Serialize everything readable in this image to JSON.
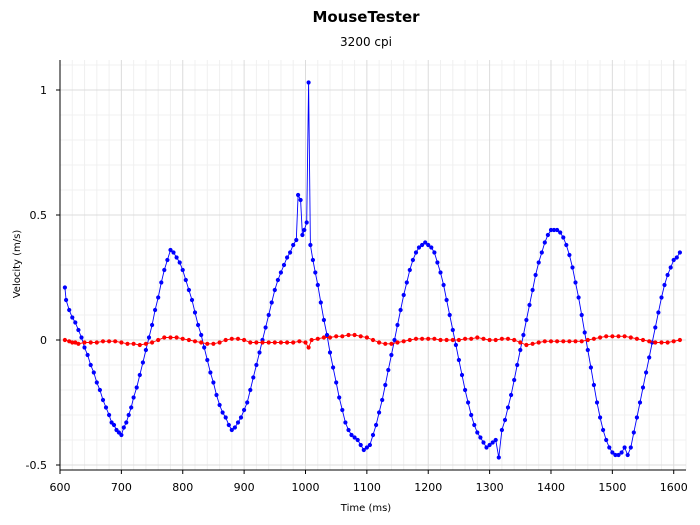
{
  "chart_data": {
    "type": "scatter",
    "title": "MouseTester",
    "subtitle": "3200 cpi",
    "xlabel": "Time (ms)",
    "ylabel": "Velocity (m/s)",
    "xlim": [
      600,
      1620
    ],
    "ylim": [
      -0.52,
      1.12
    ],
    "xticks": [
      600,
      700,
      800,
      900,
      1000,
      1100,
      1200,
      1300,
      1400,
      1500,
      1600
    ],
    "xtick_labels": [
      "600",
      "700",
      "800",
      "900",
      "1000",
      "1100",
      "1200",
      "1300",
      "1400",
      "1500",
      "1600"
    ],
    "yticks": [
      -0.5,
      0,
      0.5,
      1
    ],
    "ytick_labels": [
      "-0.5",
      "0",
      "0.5",
      "1"
    ],
    "grid": true,
    "legend": "none",
    "series": [
      {
        "color": "#0000ff",
        "style": "markers+line",
        "points": [
          [
            608,
            0.21
          ],
          [
            610,
            0.16
          ],
          [
            615,
            0.12
          ],
          [
            620,
            0.09
          ],
          [
            625,
            0.07
          ],
          [
            630,
            0.04
          ],
          [
            635,
            0.01
          ],
          [
            640,
            -0.03
          ],
          [
            645,
            -0.06
          ],
          [
            650,
            -0.1
          ],
          [
            655,
            -0.13
          ],
          [
            660,
            -0.17
          ],
          [
            665,
            -0.2
          ],
          [
            670,
            -0.24
          ],
          [
            675,
            -0.27
          ],
          [
            680,
            -0.3
          ],
          [
            684,
            -0.33
          ],
          [
            688,
            -0.34
          ],
          [
            692,
            -0.36
          ],
          [
            696,
            -0.37
          ],
          [
            700,
            -0.38
          ],
          [
            704,
            -0.35
          ],
          [
            708,
            -0.33
          ],
          [
            712,
            -0.3
          ],
          [
            716,
            -0.27
          ],
          [
            720,
            -0.23
          ],
          [
            725,
            -0.19
          ],
          [
            730,
            -0.14
          ],
          [
            735,
            -0.09
          ],
          [
            740,
            -0.04
          ],
          [
            745,
            0.01
          ],
          [
            750,
            0.06
          ],
          [
            755,
            0.12
          ],
          [
            760,
            0.17
          ],
          [
            765,
            0.23
          ],
          [
            770,
            0.28
          ],
          [
            775,
            0.32
          ],
          [
            780,
            0.36
          ],
          [
            785,
            0.35
          ],
          [
            790,
            0.33
          ],
          [
            795,
            0.31
          ],
          [
            800,
            0.28
          ],
          [
            805,
            0.24
          ],
          [
            810,
            0.2
          ],
          [
            815,
            0.16
          ],
          [
            820,
            0.11
          ],
          [
            825,
            0.06
          ],
          [
            830,
            0.02
          ],
          [
            835,
            -0.03
          ],
          [
            840,
            -0.08
          ],
          [
            845,
            -0.13
          ],
          [
            850,
            -0.17
          ],
          [
            855,
            -0.22
          ],
          [
            860,
            -0.26
          ],
          [
            865,
            -0.29
          ],
          [
            870,
            -0.31
          ],
          [
            875,
            -0.34
          ],
          [
            880,
            -0.36
          ],
          [
            885,
            -0.35
          ],
          [
            890,
            -0.33
          ],
          [
            895,
            -0.31
          ],
          [
            900,
            -0.28
          ],
          [
            905,
            -0.25
          ],
          [
            910,
            -0.2
          ],
          [
            915,
            -0.15
          ],
          [
            920,
            -0.1
          ],
          [
            925,
            -0.05
          ],
          [
            930,
            0.0
          ],
          [
            935,
            0.05
          ],
          [
            940,
            0.1
          ],
          [
            945,
            0.15
          ],
          [
            950,
            0.2
          ],
          [
            955,
            0.24
          ],
          [
            960,
            0.27
          ],
          [
            965,
            0.3
          ],
          [
            970,
            0.33
          ],
          [
            975,
            0.35
          ],
          [
            980,
            0.38
          ],
          [
            985,
            0.4
          ],
          [
            988,
            0.58
          ],
          [
            992,
            0.56
          ],
          [
            995,
            0.42
          ],
          [
            998,
            0.44
          ],
          [
            1002,
            0.47
          ],
          [
            1005,
            1.03
          ],
          [
            1008,
            0.38
          ],
          [
            1012,
            0.32
          ],
          [
            1016,
            0.27
          ],
          [
            1020,
            0.22
          ],
          [
            1025,
            0.15
          ],
          [
            1030,
            0.08
          ],
          [
            1035,
            0.02
          ],
          [
            1040,
            -0.05
          ],
          [
            1045,
            -0.11
          ],
          [
            1050,
            -0.17
          ],
          [
            1055,
            -0.23
          ],
          [
            1060,
            -0.28
          ],
          [
            1065,
            -0.33
          ],
          [
            1070,
            -0.36
          ],
          [
            1075,
            -0.38
          ],
          [
            1080,
            -0.39
          ],
          [
            1085,
            -0.4
          ],
          [
            1090,
            -0.42
          ],
          [
            1095,
            -0.44
          ],
          [
            1100,
            -0.43
          ],
          [
            1105,
            -0.42
          ],
          [
            1110,
            -0.38
          ],
          [
            1115,
            -0.34
          ],
          [
            1120,
            -0.29
          ],
          [
            1125,
            -0.24
          ],
          [
            1130,
            -0.18
          ],
          [
            1135,
            -0.12
          ],
          [
            1140,
            -0.06
          ],
          [
            1145,
            0.0
          ],
          [
            1150,
            0.06
          ],
          [
            1155,
            0.12
          ],
          [
            1160,
            0.18
          ],
          [
            1165,
            0.23
          ],
          [
            1170,
            0.28
          ],
          [
            1175,
            0.32
          ],
          [
            1180,
            0.35
          ],
          [
            1185,
            0.37
          ],
          [
            1190,
            0.38
          ],
          [
            1195,
            0.39
          ],
          [
            1200,
            0.38
          ],
          [
            1205,
            0.37
          ],
          [
            1210,
            0.35
          ],
          [
            1215,
            0.31
          ],
          [
            1220,
            0.27
          ],
          [
            1225,
            0.22
          ],
          [
            1230,
            0.16
          ],
          [
            1235,
            0.1
          ],
          [
            1240,
            0.04
          ],
          [
            1245,
            -0.02
          ],
          [
            1250,
            -0.08
          ],
          [
            1255,
            -0.14
          ],
          [
            1260,
            -0.2
          ],
          [
            1265,
            -0.25
          ],
          [
            1270,
            -0.3
          ],
          [
            1275,
            -0.34
          ],
          [
            1280,
            -0.37
          ],
          [
            1285,
            -0.39
          ],
          [
            1290,
            -0.41
          ],
          [
            1295,
            -0.43
          ],
          [
            1300,
            -0.42
          ],
          [
            1305,
            -0.41
          ],
          [
            1310,
            -0.4
          ],
          [
            1315,
            -0.47
          ],
          [
            1320,
            -0.36
          ],
          [
            1325,
            -0.32
          ],
          [
            1330,
            -0.27
          ],
          [
            1335,
            -0.22
          ],
          [
            1340,
            -0.16
          ],
          [
            1345,
            -0.1
          ],
          [
            1350,
            -0.04
          ],
          [
            1355,
            0.02
          ],
          [
            1360,
            0.08
          ],
          [
            1365,
            0.14
          ],
          [
            1370,
            0.2
          ],
          [
            1375,
            0.26
          ],
          [
            1380,
            0.31
          ],
          [
            1385,
            0.35
          ],
          [
            1390,
            0.39
          ],
          [
            1395,
            0.42
          ],
          [
            1400,
            0.44
          ],
          [
            1405,
            0.44
          ],
          [
            1410,
            0.44
          ],
          [
            1415,
            0.43
          ],
          [
            1420,
            0.41
          ],
          [
            1425,
            0.38
          ],
          [
            1430,
            0.34
          ],
          [
            1435,
            0.29
          ],
          [
            1440,
            0.23
          ],
          [
            1445,
            0.17
          ],
          [
            1450,
            0.1
          ],
          [
            1455,
            0.03
          ],
          [
            1460,
            -0.04
          ],
          [
            1465,
            -0.11
          ],
          [
            1470,
            -0.18
          ],
          [
            1475,
            -0.25
          ],
          [
            1480,
            -0.31
          ],
          [
            1485,
            -0.36
          ],
          [
            1490,
            -0.4
          ],
          [
            1495,
            -0.43
          ],
          [
            1500,
            -0.45
          ],
          [
            1505,
            -0.46
          ],
          [
            1510,
            -0.46
          ],
          [
            1515,
            -0.45
          ],
          [
            1520,
            -0.43
          ],
          [
            1525,
            -0.46
          ],
          [
            1530,
            -0.43
          ],
          [
            1535,
            -0.37
          ],
          [
            1540,
            -0.31
          ],
          [
            1545,
            -0.25
          ],
          [
            1550,
            -0.19
          ],
          [
            1555,
            -0.13
          ],
          [
            1560,
            -0.07
          ],
          [
            1565,
            -0.01
          ],
          [
            1570,
            0.05
          ],
          [
            1575,
            0.11
          ],
          [
            1580,
            0.17
          ],
          [
            1585,
            0.22
          ],
          [
            1590,
            0.26
          ],
          [
            1595,
            0.29
          ],
          [
            1600,
            0.32
          ],
          [
            1605,
            0.33
          ],
          [
            1610,
            0.35
          ]
        ]
      },
      {
        "color": "#ff0000",
        "style": "markers+line",
        "points": [
          [
            608,
            0.0
          ],
          [
            615,
            -0.005
          ],
          [
            620,
            -0.01
          ],
          [
            625,
            -0.01
          ],
          [
            630,
            -0.015
          ],
          [
            640,
            -0.01
          ],
          [
            650,
            -0.01
          ],
          [
            660,
            -0.01
          ],
          [
            670,
            -0.005
          ],
          [
            680,
            -0.005
          ],
          [
            690,
            -0.005
          ],
          [
            700,
            -0.01
          ],
          [
            710,
            -0.015
          ],
          [
            720,
            -0.015
          ],
          [
            730,
            -0.02
          ],
          [
            740,
            -0.015
          ],
          [
            750,
            -0.01
          ],
          [
            760,
            0.0
          ],
          [
            770,
            0.01
          ],
          [
            780,
            0.01
          ],
          [
            790,
            0.01
          ],
          [
            800,
            0.005
          ],
          [
            810,
            0.0
          ],
          [
            820,
            -0.005
          ],
          [
            830,
            -0.01
          ],
          [
            840,
            -0.015
          ],
          [
            850,
            -0.015
          ],
          [
            860,
            -0.01
          ],
          [
            870,
            0.0
          ],
          [
            880,
            0.005
          ],
          [
            890,
            0.005
          ],
          [
            900,
            0.0
          ],
          [
            910,
            -0.01
          ],
          [
            920,
            -0.01
          ],
          [
            930,
            -0.01
          ],
          [
            940,
            -0.01
          ],
          [
            950,
            -0.01
          ],
          [
            960,
            -0.01
          ],
          [
            970,
            -0.01
          ],
          [
            980,
            -0.01
          ],
          [
            990,
            -0.005
          ],
          [
            1000,
            -0.01
          ],
          [
            1005,
            -0.03
          ],
          [
            1010,
            0.0
          ],
          [
            1020,
            0.005
          ],
          [
            1030,
            0.01
          ],
          [
            1040,
            0.01
          ],
          [
            1050,
            0.015
          ],
          [
            1060,
            0.015
          ],
          [
            1070,
            0.02
          ],
          [
            1080,
            0.02
          ],
          [
            1090,
            0.015
          ],
          [
            1100,
            0.01
          ],
          [
            1110,
            0.0
          ],
          [
            1120,
            -0.01
          ],
          [
            1130,
            -0.015
          ],
          [
            1140,
            -0.015
          ],
          [
            1150,
            -0.01
          ],
          [
            1160,
            -0.005
          ],
          [
            1170,
            0.0
          ],
          [
            1180,
            0.005
          ],
          [
            1190,
            0.005
          ],
          [
            1200,
            0.005
          ],
          [
            1210,
            0.005
          ],
          [
            1220,
            0.0
          ],
          [
            1230,
            0.0
          ],
          [
            1240,
            0.0
          ],
          [
            1250,
            0.0
          ],
          [
            1260,
            0.005
          ],
          [
            1270,
            0.005
          ],
          [
            1280,
            0.01
          ],
          [
            1290,
            0.005
          ],
          [
            1300,
            0.0
          ],
          [
            1310,
            0.0
          ],
          [
            1320,
            0.005
          ],
          [
            1330,
            0.005
          ],
          [
            1340,
            0.0
          ],
          [
            1350,
            -0.01
          ],
          [
            1360,
            -0.02
          ],
          [
            1370,
            -0.015
          ],
          [
            1380,
            -0.01
          ],
          [
            1390,
            -0.005
          ],
          [
            1400,
            -0.005
          ],
          [
            1410,
            -0.005
          ],
          [
            1420,
            -0.005
          ],
          [
            1430,
            -0.005
          ],
          [
            1440,
            -0.005
          ],
          [
            1450,
            -0.005
          ],
          [
            1460,
            0.0
          ],
          [
            1470,
            0.005
          ],
          [
            1480,
            0.01
          ],
          [
            1490,
            0.015
          ],
          [
            1500,
            0.015
          ],
          [
            1510,
            0.015
          ],
          [
            1520,
            0.015
          ],
          [
            1530,
            0.01
          ],
          [
            1540,
            0.005
          ],
          [
            1550,
            0.0
          ],
          [
            1560,
            -0.005
          ],
          [
            1570,
            -0.01
          ],
          [
            1580,
            -0.01
          ],
          [
            1590,
            -0.01
          ],
          [
            1600,
            -0.005
          ],
          [
            1610,
            0.0
          ]
        ]
      }
    ]
  }
}
